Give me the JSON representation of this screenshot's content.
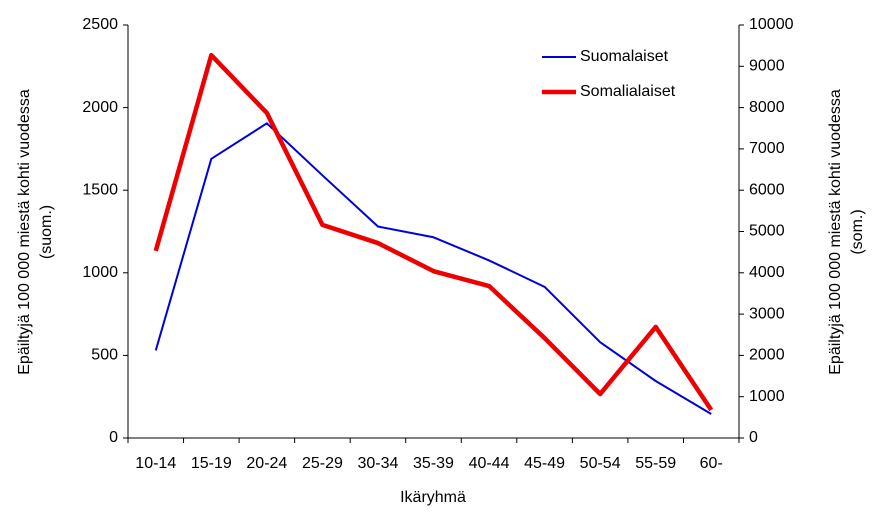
{
  "chart_data": {
    "type": "line",
    "categories": [
      "10-14",
      "15-19",
      "20-24",
      "25-29",
      "30-34",
      "35-39",
      "40-44",
      "45-49",
      "50-54",
      "55-59",
      "60-"
    ],
    "series": [
      {
        "name": "Suomalaiset",
        "color": "#0000dd",
        "values": [
          530,
          1690,
          1905,
          1590,
          1280,
          1215,
          1075,
          915,
          580,
          345,
          145
        ]
      },
      {
        "name": "Somalialaiset",
        "color": "#ee0000",
        "axis": "y2",
        "values": [
          4530,
          9270,
          7870,
          5160,
          4720,
          4040,
          3680,
          2420,
          1065,
          2690,
          680
        ]
      }
    ],
    "x_label": "Ikäryhmä",
    "y_label": [
      "Epäiltyjä 100 000 miestä kohti vuodessa",
      "(suom.)"
    ],
    "y2_label": [
      "Epäiltyjä 100 000 miestä kohti vuodessa",
      "(som.)"
    ],
    "ylim": [
      0,
      2500
    ],
    "yticks": [
      0,
      500,
      1000,
      1500,
      2000,
      2500
    ],
    "y2lim": [
      0,
      10000
    ],
    "y2ticks": [
      0,
      1000,
      2000,
      3000,
      4000,
      5000,
      6000,
      7000,
      8000,
      9000,
      10000
    ],
    "grid": false,
    "legend": "upper right"
  }
}
